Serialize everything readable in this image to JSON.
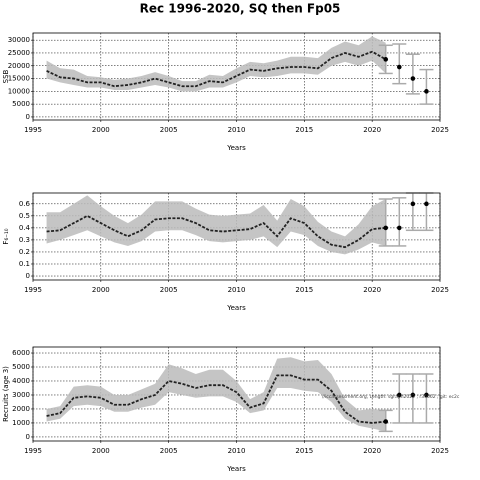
{
  "title": "Rec 1996-2020, SQ then Fp05",
  "chart_data": [
    {
      "type": "line",
      "ylabel": "SSB",
      "xlabel": "Years",
      "xlim": [
        1995,
        2025
      ],
      "xticks": [
        1995,
        2000,
        2005,
        2010,
        2015,
        2020,
        2025
      ],
      "ylim": [
        -1200,
        32800
      ],
      "yticks": [
        0,
        5000,
        10000,
        15000,
        20000,
        25000,
        30000
      ],
      "grid": true,
      "color": "#222222",
      "band_color": "#bbbbbb",
      "projection_color": "#aaaaaa",
      "x": [
        1996,
        1997,
        1998,
        1999,
        2000,
        2001,
        2002,
        2003,
        2004,
        2005,
        2006,
        2007,
        2008,
        2009,
        2010,
        2011,
        2012,
        2013,
        2014,
        2015,
        2016,
        2017,
        2018,
        2019,
        2020,
        2021
      ],
      "values": [
        18000,
        15500,
        15000,
        13500,
        13500,
        12000,
        12500,
        13500,
        15000,
        13500,
        12000,
        12000,
        14000,
        13500,
        16000,
        18500,
        18000,
        19000,
        19500,
        19500,
        19000,
        23000,
        25000,
        23500,
        25500,
        22500
      ],
      "band": {
        "upper": [
          22000,
          19000,
          18500,
          16000,
          15500,
          14500,
          15000,
          16000,
          17500,
          16000,
          14000,
          14000,
          16500,
          16000,
          19000,
          21500,
          21000,
          22000,
          23500,
          23500,
          23000,
          27000,
          29500,
          28000,
          31500,
          29000
        ],
        "lower": [
          15000,
          13500,
          12500,
          11500,
          11500,
          10500,
          10500,
          11500,
          12500,
          11500,
          10000,
          10000,
          11500,
          11500,
          13500,
          16000,
          15500,
          16000,
          17000,
          17000,
          16500,
          20000,
          21500,
          20000,
          22000,
          17000
        ]
      },
      "projection": {
        "x": [
          2021,
          2022,
          2023,
          2024
        ],
        "values": [
          22500,
          19500,
          15000,
          10000
        ],
        "lower": [
          17000,
          13000,
          9000,
          5000
        ],
        "upper": [
          28000,
          28500,
          24500,
          18500
        ]
      }
    },
    {
      "type": "line",
      "ylabel": "F₆₋₁₀",
      "xlabel": "Years",
      "xlim": [
        1995,
        2025
      ],
      "xticks": [
        1995,
        2000,
        2005,
        2010,
        2015,
        2020,
        2025
      ],
      "ylim": [
        -0.033,
        0.69
      ],
      "yticks": [
        0,
        0.1,
        0.2,
        0.3,
        0.4,
        0.5,
        0.6
      ],
      "grid": true,
      "color": "#222222",
      "band_color": "#bbbbbb",
      "projection_color": "#aaaaaa",
      "x": [
        1996,
        1997,
        1998,
        1999,
        2000,
        2001,
        2002,
        2003,
        2004,
        2005,
        2006,
        2007,
        2008,
        2009,
        2010,
        2011,
        2012,
        2013,
        2014,
        2015,
        2016,
        2017,
        2018,
        2019,
        2020,
        2021
      ],
      "values": [
        0.37,
        0.38,
        0.44,
        0.5,
        0.44,
        0.38,
        0.33,
        0.38,
        0.47,
        0.48,
        0.48,
        0.44,
        0.38,
        0.37,
        0.38,
        0.39,
        0.44,
        0.33,
        0.48,
        0.44,
        0.33,
        0.26,
        0.24,
        0.3,
        0.39,
        0.4
      ],
      "band": {
        "upper": [
          0.53,
          0.53,
          0.6,
          0.67,
          0.58,
          0.5,
          0.44,
          0.51,
          0.62,
          0.62,
          0.62,
          0.56,
          0.51,
          0.5,
          0.51,
          0.52,
          0.59,
          0.46,
          0.64,
          0.58,
          0.45,
          0.37,
          0.33,
          0.43,
          0.58,
          0.64
        ],
        "lower": [
          0.27,
          0.3,
          0.34,
          0.38,
          0.33,
          0.28,
          0.25,
          0.29,
          0.37,
          0.38,
          0.38,
          0.34,
          0.29,
          0.28,
          0.29,
          0.3,
          0.33,
          0.24,
          0.37,
          0.34,
          0.25,
          0.2,
          0.18,
          0.22,
          0.28,
          0.25
        ]
      },
      "projection": {
        "x": [
          2021,
          2022,
          2023,
          2024
        ],
        "values": [
          0.4,
          0.4,
          0.6,
          0.6
        ],
        "lower": [
          0.25,
          0.25,
          0.38,
          0.38
        ],
        "upper": [
          0.64,
          0.65,
          0.69,
          0.69
        ]
      }
    },
    {
      "type": "line",
      "ylabel": "Recruits (age 3)",
      "xlabel": "Years",
      "xlim": [
        1995,
        2025
      ],
      "xticks": [
        1995,
        2000,
        2005,
        2010,
        2015,
        2020,
        2025
      ],
      "ylim": [
        -290,
        6430
      ],
      "yticks": [
        0,
        1000,
        2000,
        3000,
        4000,
        5000,
        6000
      ],
      "grid": true,
      "color": "#222222",
      "band_color": "#bbbbbb",
      "projection_color": "#aaaaaa",
      "annotation": "//iccassessment.org, Length: sgraph2022 ; r36062 ; git: ec2c",
      "x": [
        1996,
        1997,
        1998,
        1999,
        2000,
        2001,
        2002,
        2003,
        2004,
        2005,
        2006,
        2007,
        2008,
        2009,
        2010,
        2011,
        2012,
        2013,
        2014,
        2015,
        2016,
        2017,
        2018,
        2019,
        2020,
        2021
      ],
      "values": [
        1500,
        1700,
        2800,
        2900,
        2800,
        2300,
        2300,
        2700,
        3000,
        4000,
        3800,
        3500,
        3700,
        3700,
        3200,
        2100,
        2400,
        4400,
        4400,
        4100,
        4100,
        3300,
        1800,
        1100,
        1000,
        1100
      ],
      "band": {
        "upper": [
          2000,
          2200,
          3600,
          3700,
          3600,
          3000,
          3000,
          3400,
          3800,
          5200,
          4900,
          4500,
          4800,
          4800,
          4000,
          2700,
          3200,
          5600,
          5700,
          5400,
          5500,
          4500,
          2700,
          1900,
          2000,
          1900
        ],
        "lower": [
          1100,
          1300,
          2200,
          2300,
          2200,
          1800,
          1800,
          2100,
          2300,
          3200,
          3000,
          2800,
          2900,
          2900,
          2500,
          1700,
          1900,
          3500,
          3500,
          3300,
          3200,
          2500,
          1300,
          800,
          600,
          400
        ]
      },
      "projection": {
        "x": [
          2021,
          2022,
          2023,
          2024
        ],
        "values": [
          1100,
          3000,
          3000,
          3000
        ],
        "lower": [
          400,
          1000,
          1000,
          1000
        ],
        "upper": [
          1900,
          4500,
          4500,
          4500
        ]
      }
    }
  ]
}
